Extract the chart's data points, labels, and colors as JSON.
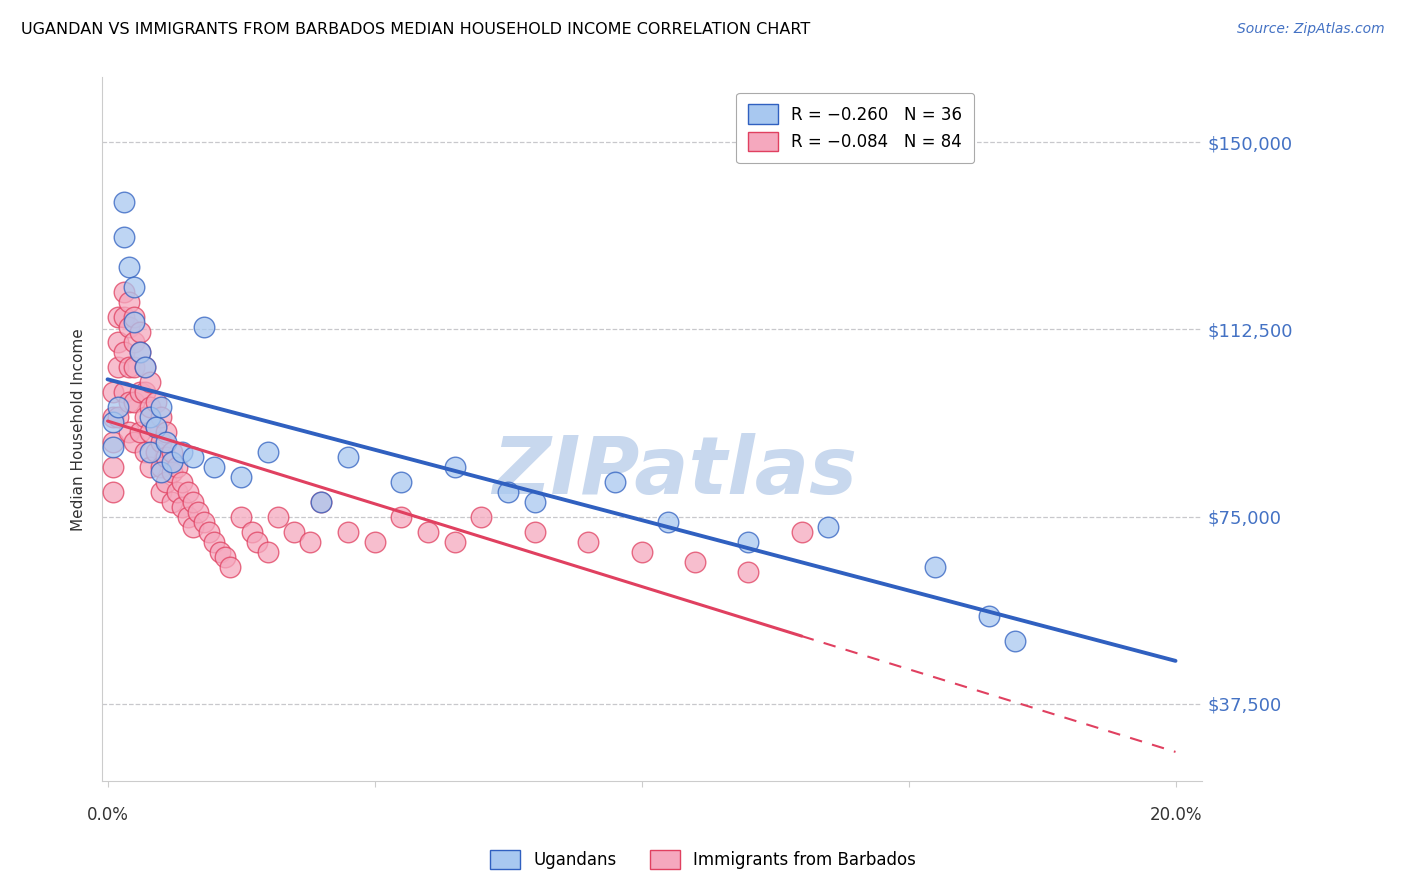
{
  "title": "UGANDAN VS IMMIGRANTS FROM BARBADOS MEDIAN HOUSEHOLD INCOME CORRELATION CHART",
  "source": "Source: ZipAtlas.com",
  "ylabel": "Median Household Income",
  "ytick_labels": [
    "$150,000",
    "$112,500",
    "$75,000",
    "$37,500"
  ],
  "ytick_values": [
    150000,
    112500,
    75000,
    37500
  ],
  "ymin": 22000,
  "ymax": 163000,
  "xmin": -0.001,
  "xmax": 0.205,
  "blue_color": "#A8C8F0",
  "pink_color": "#F5A8BE",
  "trendline_blue": "#3060C0",
  "trendline_pink": "#E04060",
  "watermark_text": "ZIPatlas",
  "watermark_color": "#C8D8EE",
  "ugandan_x": [
    0.001,
    0.001,
    0.002,
    0.003,
    0.003,
    0.004,
    0.005,
    0.005,
    0.006,
    0.007,
    0.008,
    0.008,
    0.009,
    0.01,
    0.01,
    0.011,
    0.012,
    0.014,
    0.016,
    0.018,
    0.02,
    0.025,
    0.03,
    0.04,
    0.045,
    0.055,
    0.065,
    0.075,
    0.08,
    0.095,
    0.105,
    0.12,
    0.135,
    0.155,
    0.165,
    0.17
  ],
  "ugandan_y": [
    94000,
    89000,
    97000,
    138000,
    131000,
    125000,
    121000,
    114000,
    108000,
    105000,
    95000,
    88000,
    93000,
    97000,
    84000,
    90000,
    86000,
    88000,
    87000,
    113000,
    85000,
    83000,
    88000,
    78000,
    87000,
    82000,
    85000,
    80000,
    78000,
    82000,
    74000,
    70000,
    73000,
    65000,
    55000,
    50000
  ],
  "barbados_x": [
    0.001,
    0.001,
    0.001,
    0.001,
    0.001,
    0.002,
    0.002,
    0.002,
    0.002,
    0.003,
    0.003,
    0.003,
    0.003,
    0.004,
    0.004,
    0.004,
    0.004,
    0.004,
    0.005,
    0.005,
    0.005,
    0.005,
    0.005,
    0.006,
    0.006,
    0.006,
    0.006,
    0.007,
    0.007,
    0.007,
    0.007,
    0.008,
    0.008,
    0.008,
    0.008,
    0.009,
    0.009,
    0.009,
    0.01,
    0.01,
    0.01,
    0.01,
    0.011,
    0.011,
    0.011,
    0.012,
    0.012,
    0.012,
    0.013,
    0.013,
    0.014,
    0.014,
    0.015,
    0.015,
    0.016,
    0.016,
    0.017,
    0.018,
    0.019,
    0.02,
    0.021,
    0.022,
    0.023,
    0.025,
    0.027,
    0.028,
    0.03,
    0.032,
    0.035,
    0.038,
    0.04,
    0.045,
    0.05,
    0.055,
    0.06,
    0.065,
    0.07,
    0.08,
    0.09,
    0.1,
    0.11,
    0.12,
    0.13
  ],
  "barbados_y": [
    100000,
    95000,
    90000,
    85000,
    80000,
    115000,
    110000,
    105000,
    95000,
    120000,
    115000,
    108000,
    100000,
    118000,
    113000,
    105000,
    98000,
    92000,
    115000,
    110000,
    105000,
    98000,
    90000,
    112000,
    108000,
    100000,
    92000,
    105000,
    100000,
    95000,
    88000,
    102000,
    97000,
    92000,
    85000,
    98000,
    93000,
    88000,
    95000,
    90000,
    85000,
    80000,
    92000,
    87000,
    82000,
    88000,
    84000,
    78000,
    85000,
    80000,
    82000,
    77000,
    80000,
    75000,
    78000,
    73000,
    76000,
    74000,
    72000,
    70000,
    68000,
    67000,
    65000,
    75000,
    72000,
    70000,
    68000,
    75000,
    72000,
    70000,
    78000,
    72000,
    70000,
    75000,
    72000,
    70000,
    75000,
    72000,
    70000,
    68000,
    66000,
    64000,
    72000
  ]
}
